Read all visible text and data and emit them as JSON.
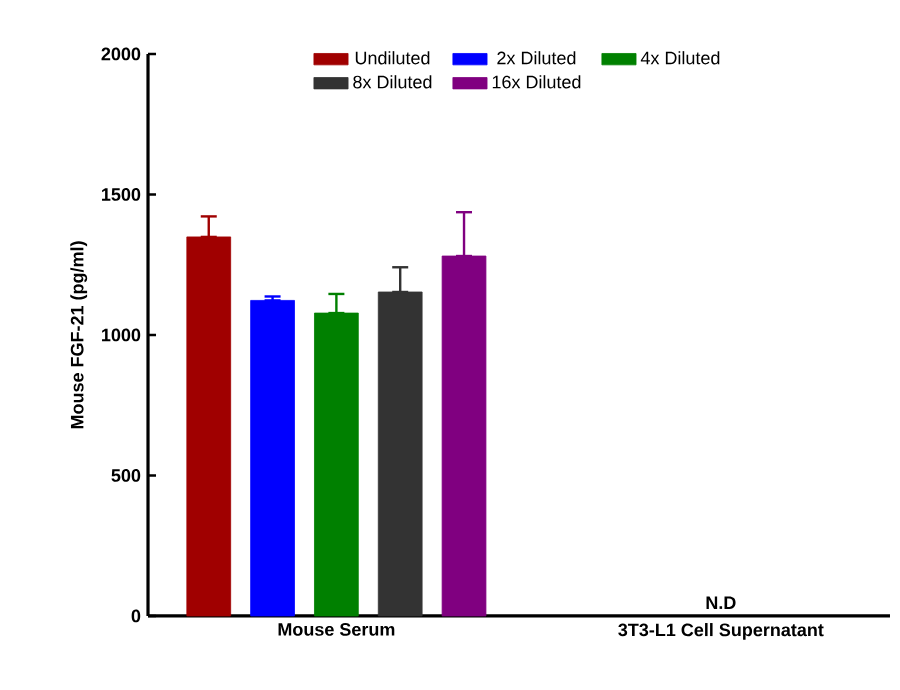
{
  "chart_data": {
    "type": "bar",
    "ylabel": "Mouse FGF-21 (pg/ml)",
    "categories": [
      "Mouse Serum",
      "3T3-L1 Cell Supernatant"
    ],
    "series": [
      {
        "name": "Undiluted",
        "color": "#a00000",
        "values": [
          1349,
          null
        ],
        "errors": [
          [
            1349,
            1422
          ],
          null
        ]
      },
      {
        "name": "2x Diluted",
        "color": "#0000ff",
        "values": [
          1123,
          null
        ],
        "errors": [
          [
            1123,
            1137
          ],
          null
        ]
      },
      {
        "name": "4x Diluted",
        "color": "#008000",
        "values": [
          1078,
          null
        ],
        "errors": [
          [
            1078,
            1146
          ],
          null
        ]
      },
      {
        "name": "8x Diluted",
        "color": "#333333",
        "values": [
          1153,
          null
        ],
        "errors": [
          [
            1153,
            1241
          ],
          null
        ]
      },
      {
        "name": "16x Diluted",
        "color": "#800080",
        "values": [
          1281,
          null
        ],
        "errors": [
          [
            1281,
            1437
          ],
          null
        ]
      }
    ],
    "ylim": [
      0,
      2000
    ],
    "yticks": [
      0,
      500,
      1000,
      1500,
      2000
    ],
    "annotations": [
      "N.D"
    ],
    "legend": "top",
    "grid": false
  }
}
